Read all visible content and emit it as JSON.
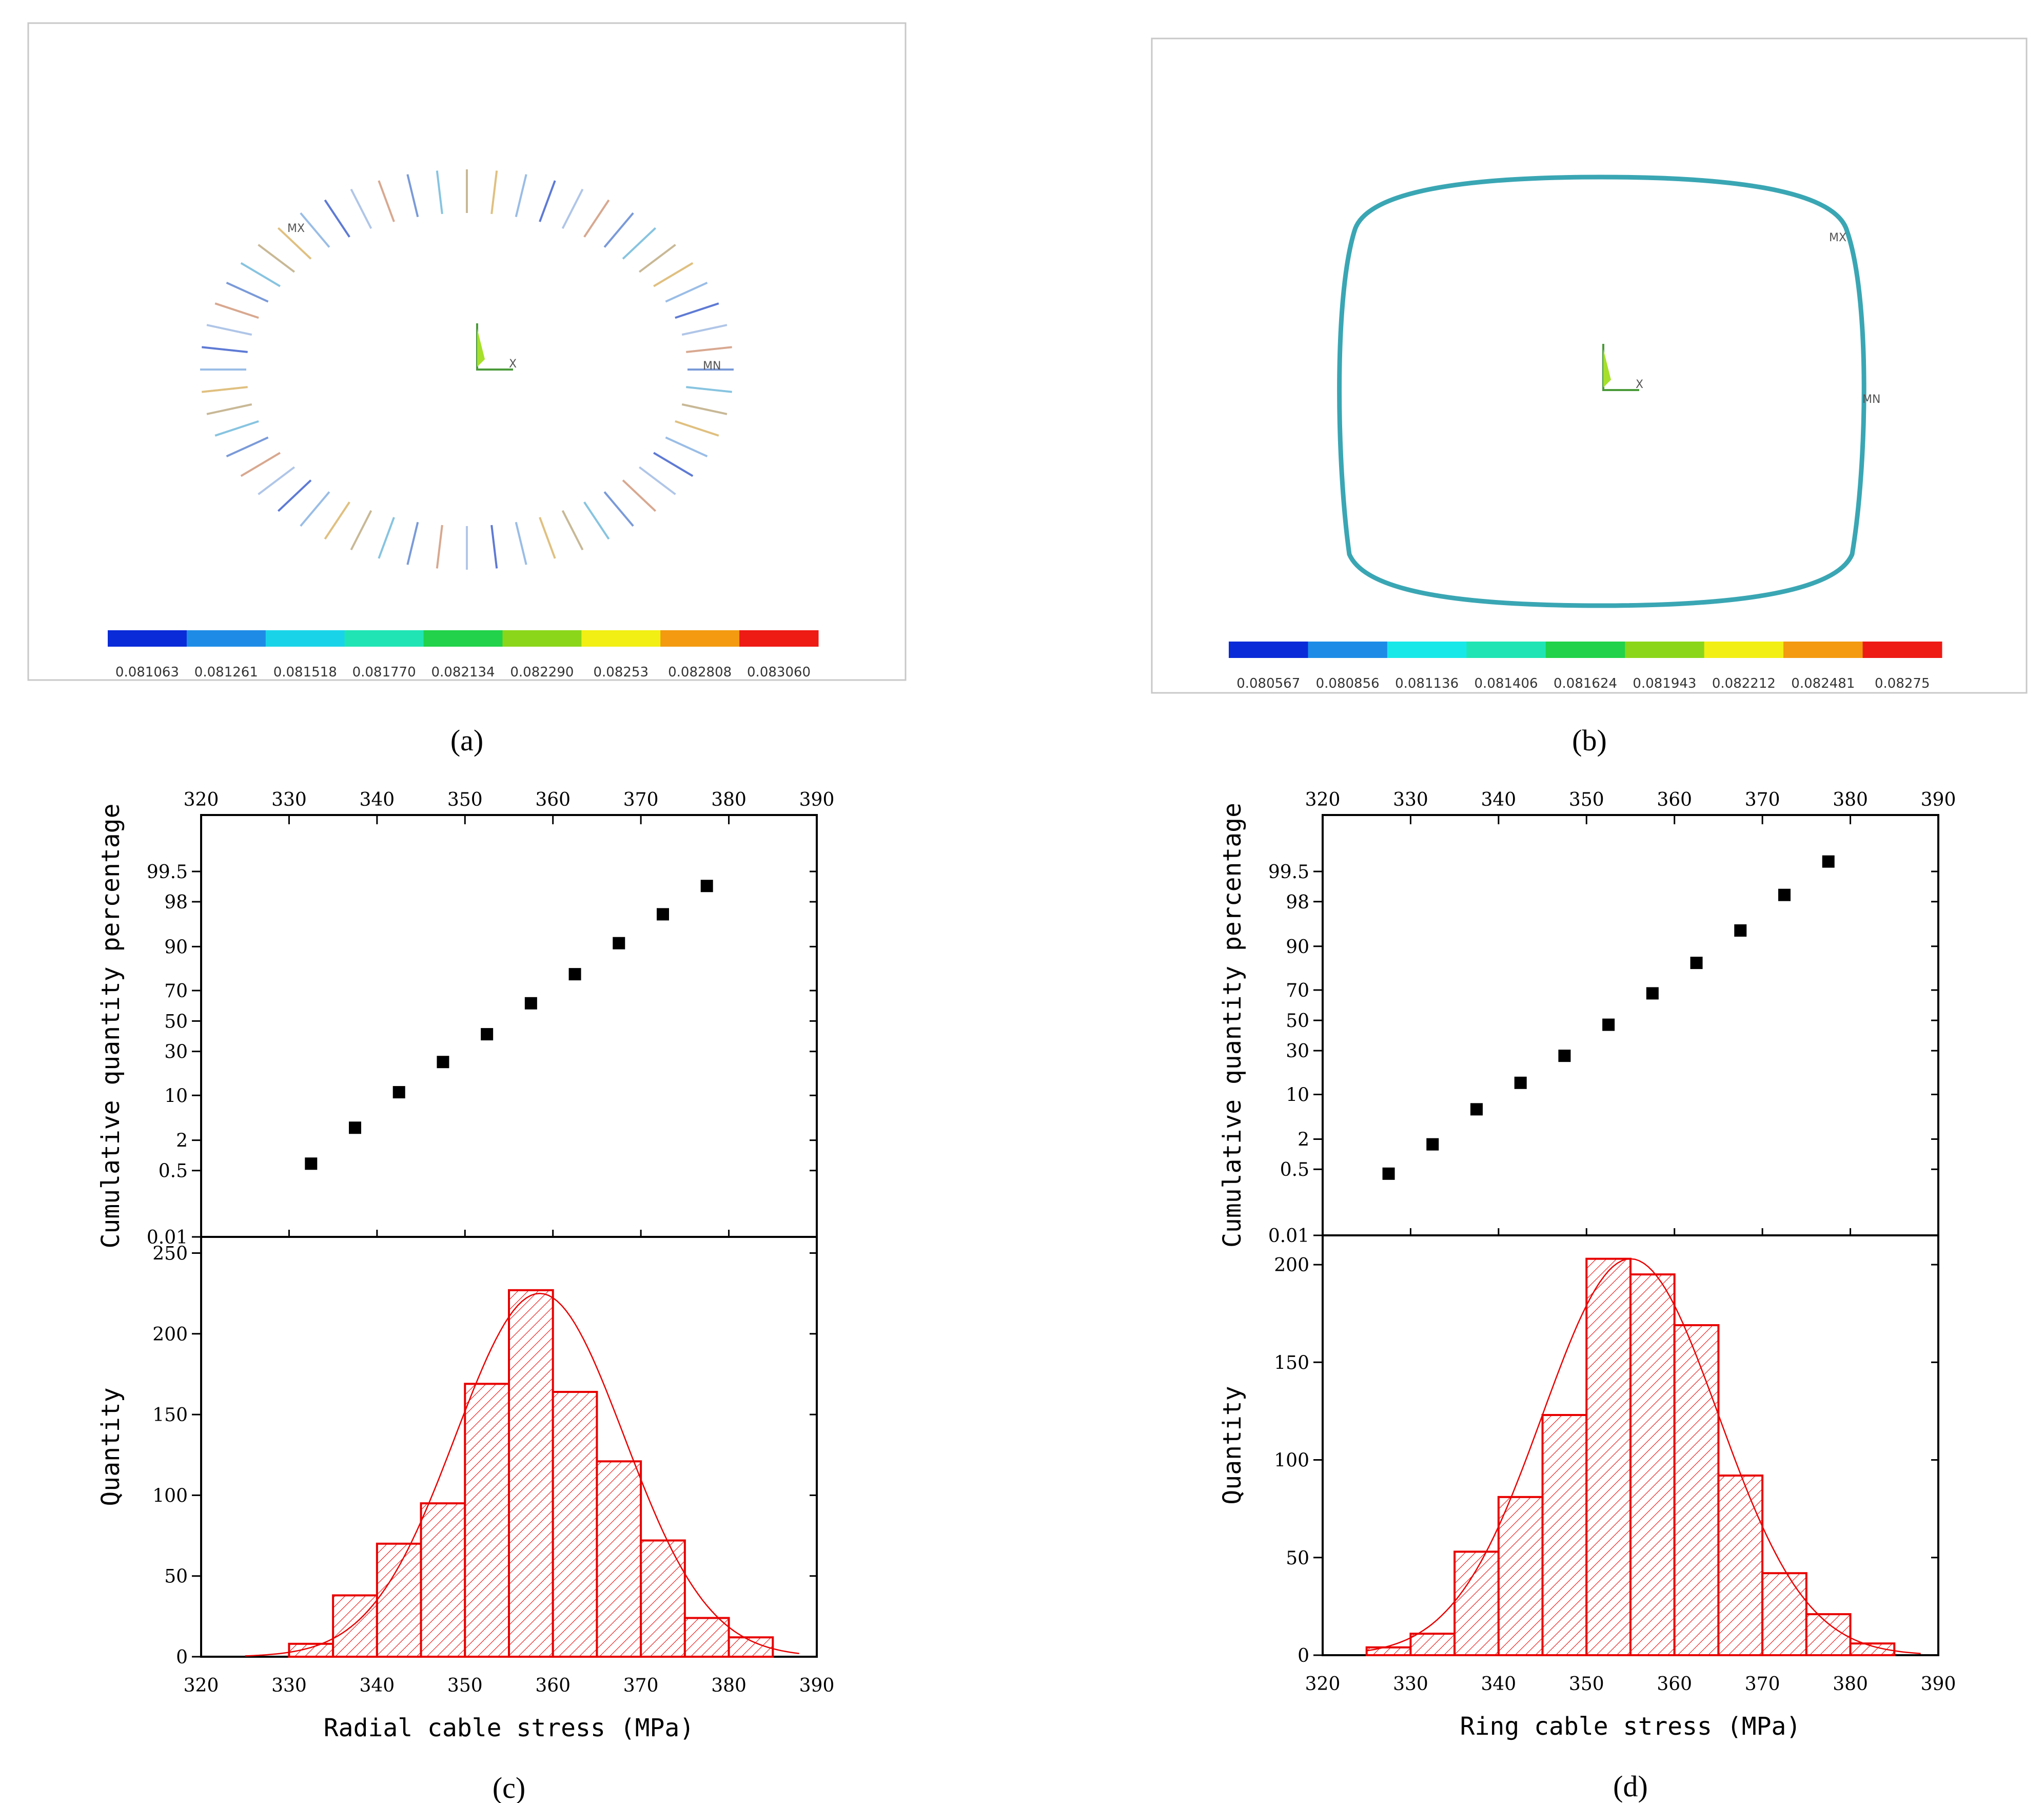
{
  "panel_a": {
    "legend_values": [
      "0.081063",
      "0.081261",
      "0.081518",
      "0.081770",
      "0.082134",
      "0.082290",
      "0.08253",
      "0.082808",
      "0.083060"
    ],
    "legend_colors": [
      "#0a2bd8",
      "#1e8ce6",
      "#19d4e8",
      "#20e4b4",
      "#21d24a",
      "#8bd61a",
      "#f2ef14",
      "#f39a10",
      "#ee1a14"
    ],
    "node_labels": [
      "MX",
      "MN"
    ],
    "axis_label": "X",
    "caption": "(a)"
  },
  "panel_b": {
    "legend_values": [
      "0.080567",
      "0.080856",
      "0.081136",
      "0.081406",
      "0.081624",
      "0.081943",
      "0.082212",
      "0.082481",
      "0.08275"
    ],
    "legend_colors": [
      "#0a2bd8",
      "#1e8ce6",
      "#19e8e8",
      "#20e4b4",
      "#21d24a",
      "#8bd61a",
      "#f2ef14",
      "#f39a10",
      "#ee1a14"
    ],
    "node_labels": [
      "MX",
      "MN"
    ],
    "axis_label": "X",
    "caption": "(b)"
  },
  "chart_data": [
    {
      "id": "c",
      "type": "bar",
      "caption": "(c)",
      "xlabel": "Radial cable stress (MPa)",
      "xlim": [
        320,
        390
      ],
      "xticks": [
        "320",
        "330",
        "340",
        "350",
        "360",
        "370",
        "380",
        "390"
      ],
      "prob_ylabel": "Cumulative quantity percentage",
      "prob_yticks": [
        "99.5",
        "98",
        "90",
        "70",
        "50",
        "30",
        "10",
        "2",
        "0.5",
        "0.01"
      ],
      "prob_points": [
        {
          "x": 332.5,
          "p": 0.7
        },
        {
          "x": 337.5,
          "p": 3.3
        },
        {
          "x": 342.5,
          "p": 11
        },
        {
          "x": 347.5,
          "p": 24
        },
        {
          "x": 352.5,
          "p": 41
        },
        {
          "x": 357.5,
          "p": 62
        },
        {
          "x": 362.5,
          "p": 79
        },
        {
          "x": 367.5,
          "p": 91
        },
        {
          "x": 372.5,
          "p": 96.7
        },
        {
          "x": 377.5,
          "p": 99
        }
      ],
      "hist_ylabel": "Quantity",
      "hist_yticks": [
        "0",
        "50",
        "100",
        "150",
        "200",
        "250"
      ],
      "hist_ylim": [
        0,
        260
      ],
      "bins": [
        330,
        335,
        340,
        345,
        350,
        355,
        360,
        365,
        370,
        375,
        380,
        385
      ],
      "counts": [
        8,
        38,
        70,
        95,
        169,
        227,
        164,
        121,
        72,
        24,
        12
      ],
      "fit": {
        "mean": 358.5,
        "sd": 9.6,
        "peak": 225
      }
    },
    {
      "id": "d",
      "type": "bar",
      "caption": "(d)",
      "xlabel": "Ring cable stress (MPa)",
      "xlim": [
        320,
        390
      ],
      "xticks": [
        "320",
        "330",
        "340",
        "350",
        "360",
        "370",
        "380",
        "390"
      ],
      "prob_ylabel": "Cumulative quantity percentage",
      "prob_yticks": [
        "99.5",
        "98",
        "90",
        "70",
        "50",
        "30",
        "10",
        "2",
        "0.5",
        "0.01"
      ],
      "prob_points": [
        {
          "x": 327.5,
          "p": 0.4
        },
        {
          "x": 332.5,
          "p": 1.6
        },
        {
          "x": 337.5,
          "p": 6.2
        },
        {
          "x": 342.5,
          "p": 14
        },
        {
          "x": 347.5,
          "p": 27
        },
        {
          "x": 352.5,
          "p": 47
        },
        {
          "x": 357.5,
          "p": 68
        },
        {
          "x": 362.5,
          "p": 84
        },
        {
          "x": 367.5,
          "p": 94
        },
        {
          "x": 372.5,
          "p": 98.5
        },
        {
          "x": 377.5,
          "p": 99.7
        }
      ],
      "hist_ylabel": "Quantity",
      "hist_yticks": [
        "0",
        "50",
        "100",
        "150",
        "200"
      ],
      "hist_ylim": [
        0,
        215
      ],
      "bins": [
        325,
        330,
        335,
        340,
        345,
        350,
        355,
        360,
        365,
        370,
        375,
        380,
        385
      ],
      "counts": [
        4,
        11,
        53,
        81,
        123,
        203,
        195,
        169,
        92,
        42,
        21,
        6
      ],
      "fit": {
        "mean": 355,
        "sd": 10,
        "peak": 203
      }
    }
  ]
}
